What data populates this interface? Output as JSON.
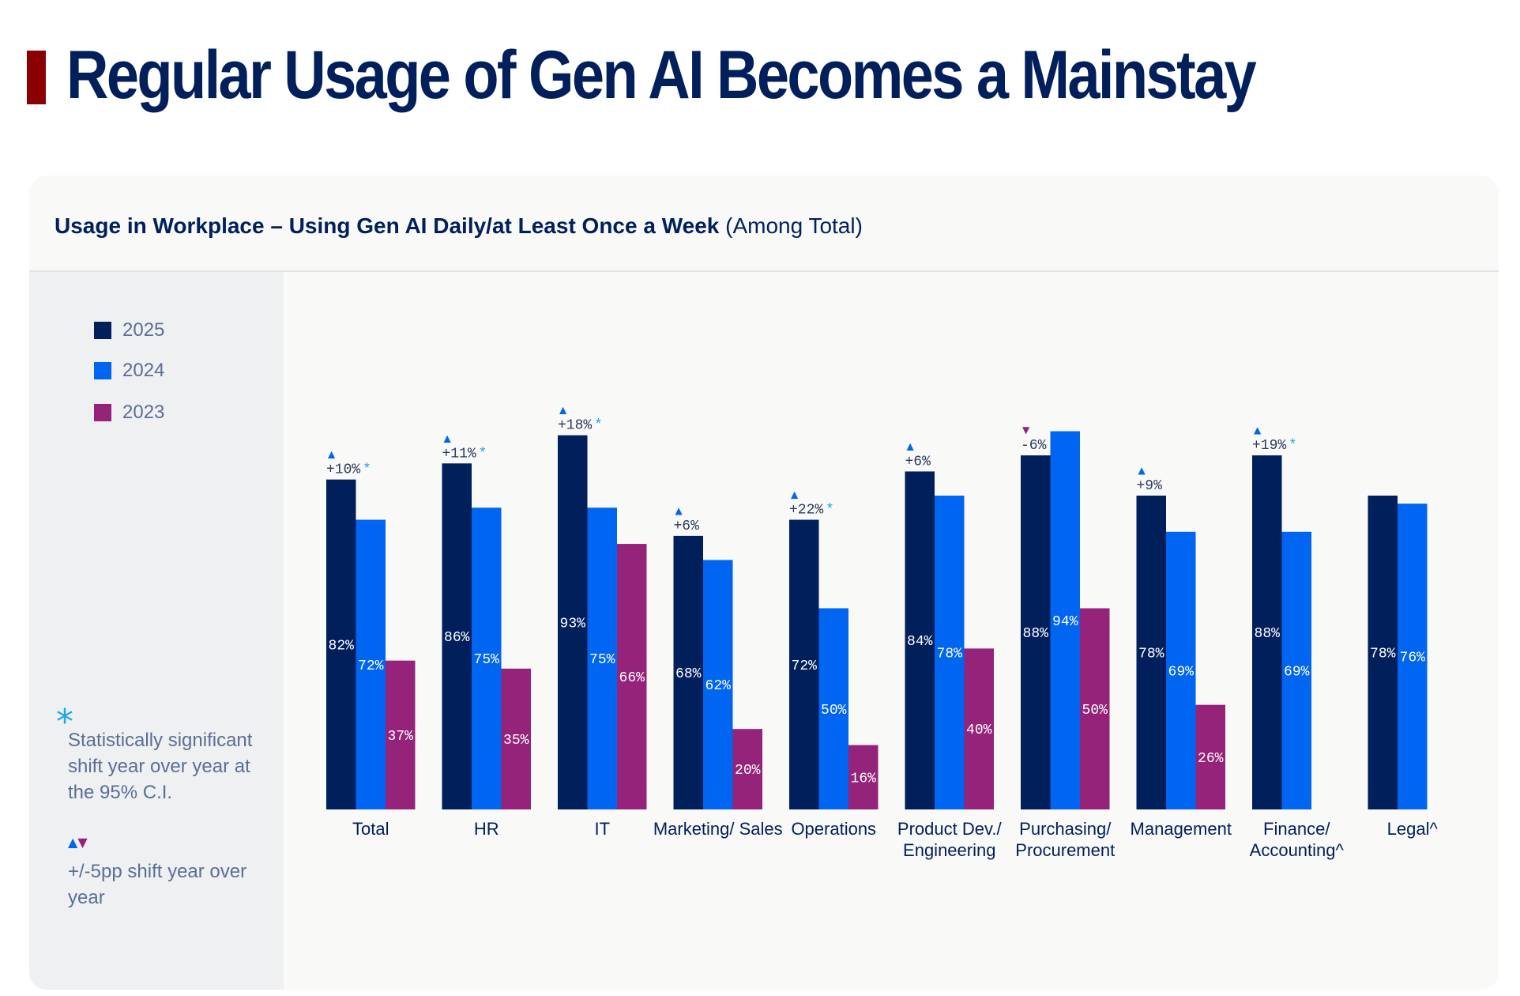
{
  "page": {
    "title": "Regular Usage of Gen AI Becomes a Mainstay",
    "accent_color": "#8b0000"
  },
  "card": {
    "title_bold": "Usage in Workplace – Using Gen AI Daily/at Least Once a Week",
    "title_regular": "(Among Total)"
  },
  "legend": [
    {
      "label": "2025",
      "color": "#001f5b"
    },
    {
      "label": "2024",
      "color": "#0065f0"
    },
    {
      "label": "2023",
      "color": "#95237a"
    }
  ],
  "notes": {
    "star_icon": "*",
    "significance": "Statistically significant shift year over year at the 95% C.I.",
    "shift": "+/-5pp shift year over year",
    "up_icon": "▲",
    "down_icon": "▼"
  },
  "chart_data": {
    "type": "bar",
    "title": "Usage in Workplace – Using Gen AI Daily/at Least Once a Week (Among Total)",
    "xlabel": "",
    "ylabel": "",
    "ylim": [
      0,
      100
    ],
    "grid": false,
    "legend_position": "left",
    "categories": [
      "Total",
      "HR",
      "IT",
      "Marketing/ Sales",
      "Operations",
      "Product Dev./ Engineering",
      "Purchasing/ Procurement",
      "Management",
      "Finance/ Accounting^",
      "Legal^"
    ],
    "series": [
      {
        "name": "2025",
        "color": "#001f5b",
        "values": [
          82,
          86,
          93,
          68,
          72,
          84,
          88,
          78,
          88,
          78
        ]
      },
      {
        "name": "2024",
        "color": "#0065f0",
        "values": [
          72,
          75,
          75,
          62,
          50,
          78,
          94,
          69,
          69,
          76
        ]
      },
      {
        "name": "2023",
        "color": "#95237a",
        "values": [
          37,
          35,
          66,
          20,
          16,
          40,
          50,
          26,
          null,
          null
        ]
      }
    ],
    "annotations": [
      {
        "category": "Total",
        "text": "+10%",
        "direction": "up",
        "significant": true
      },
      {
        "category": "HR",
        "text": "+11%",
        "direction": "up",
        "significant": true
      },
      {
        "category": "IT",
        "text": "+18%",
        "direction": "up",
        "significant": true
      },
      {
        "category": "Marketing/ Sales",
        "text": "+6%",
        "direction": "up",
        "significant": false
      },
      {
        "category": "Operations",
        "text": "+22%",
        "direction": "up",
        "significant": true
      },
      {
        "category": "Product Dev./ Engineering",
        "text": "+6%",
        "direction": "up",
        "significant": false
      },
      {
        "category": "Purchasing/ Procurement",
        "text": "-6%",
        "direction": "down",
        "significant": false
      },
      {
        "category": "Management",
        "text": "+9%",
        "direction": "up",
        "significant": false
      },
      {
        "category": "Finance/ Accounting^",
        "text": "+19%",
        "direction": "up",
        "significant": true
      },
      {
        "category": "Legal^",
        "text": null,
        "direction": null,
        "significant": false
      }
    ]
  }
}
